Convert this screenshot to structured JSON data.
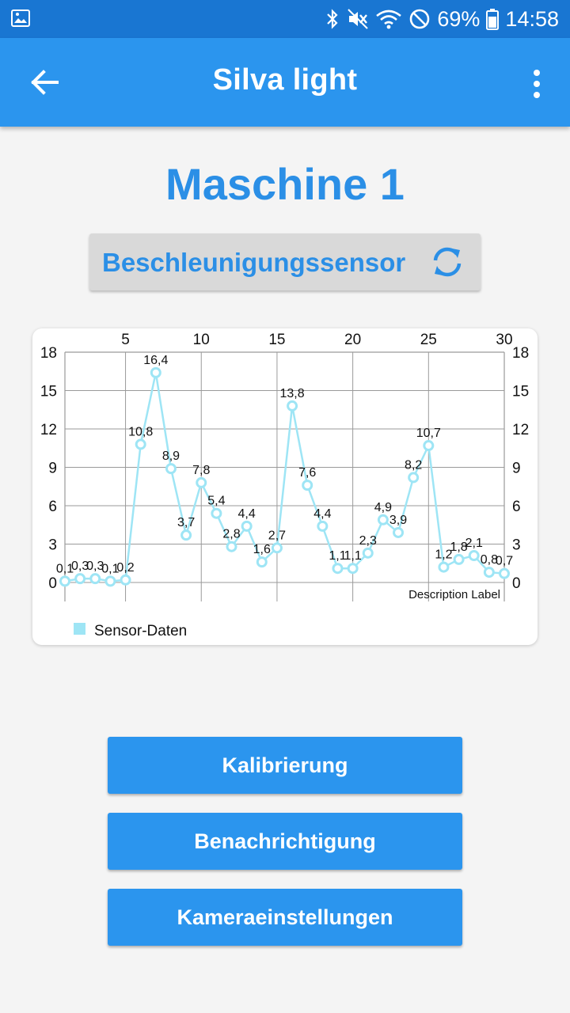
{
  "status_bar": {
    "battery_text": "69%",
    "time": "14:58",
    "icons": [
      "image-icon",
      "bluetooth-icon",
      "mute-icon",
      "wifi-icon",
      "dnd-icon",
      "battery-icon"
    ]
  },
  "app_bar": {
    "title": "Silva light",
    "back_icon": "arrow-back-icon",
    "menu_icon": "more-vert-icon"
  },
  "machine": {
    "title": "Maschine 1"
  },
  "sensor": {
    "label": "Beschleunigungssensor",
    "icon": "refresh-icon"
  },
  "chart_data": {
    "type": "line",
    "x_ticks": [
      "5",
      "10",
      "15",
      "20",
      "25",
      "30"
    ],
    "y_ticks": [
      "0",
      "3",
      "6",
      "9",
      "12",
      "15",
      "18"
    ],
    "ylim": [
      0,
      18
    ],
    "x": [
      1,
      2,
      3,
      4,
      5,
      6,
      7,
      8,
      9,
      10,
      11,
      12,
      13,
      14,
      15,
      16,
      17,
      18,
      19,
      20,
      21,
      22,
      23,
      24,
      25,
      26,
      27,
      28,
      29,
      30,
      31
    ],
    "series": [
      {
        "name": "Sensor-Daten",
        "values": [
          0.1,
          0.3,
          0.3,
          0.1,
          0.2,
          10.8,
          16.4,
          8.9,
          3.7,
          7.8,
          5.4,
          2.8,
          4.4,
          1.6,
          2.7,
          13.8,
          7.6,
          4.4,
          1.1,
          1.1,
          2.3,
          4.9,
          3.9,
          8.2,
          10.7,
          1.2,
          1.8,
          2.1,
          0.8,
          0.7,
          null
        ],
        "labels": [
          "0,1",
          "0,3",
          "0,3",
          "0,1",
          "0,2",
          "10,8",
          "16,4",
          "8,9",
          "3,7",
          "7,8",
          "5,4",
          "2,8",
          "4,4",
          "1,6",
          "2,7",
          "13,8",
          "7,6",
          "4,4",
          "1,1",
          "1,1",
          "2,3",
          "4,9",
          "3,9",
          "8,2",
          "10,7",
          "1,2",
          "1,8",
          "2,1",
          "0,8",
          "0,7",
          ""
        ]
      }
    ],
    "description": "Description Label",
    "grid": true,
    "legend_position": "bottom-left",
    "line_color": "#9ee5f5"
  },
  "buttons": [
    {
      "label": "Kalibrierung"
    },
    {
      "label": "Benachrichtigung"
    },
    {
      "label": "Kameraeinstellungen"
    }
  ]
}
